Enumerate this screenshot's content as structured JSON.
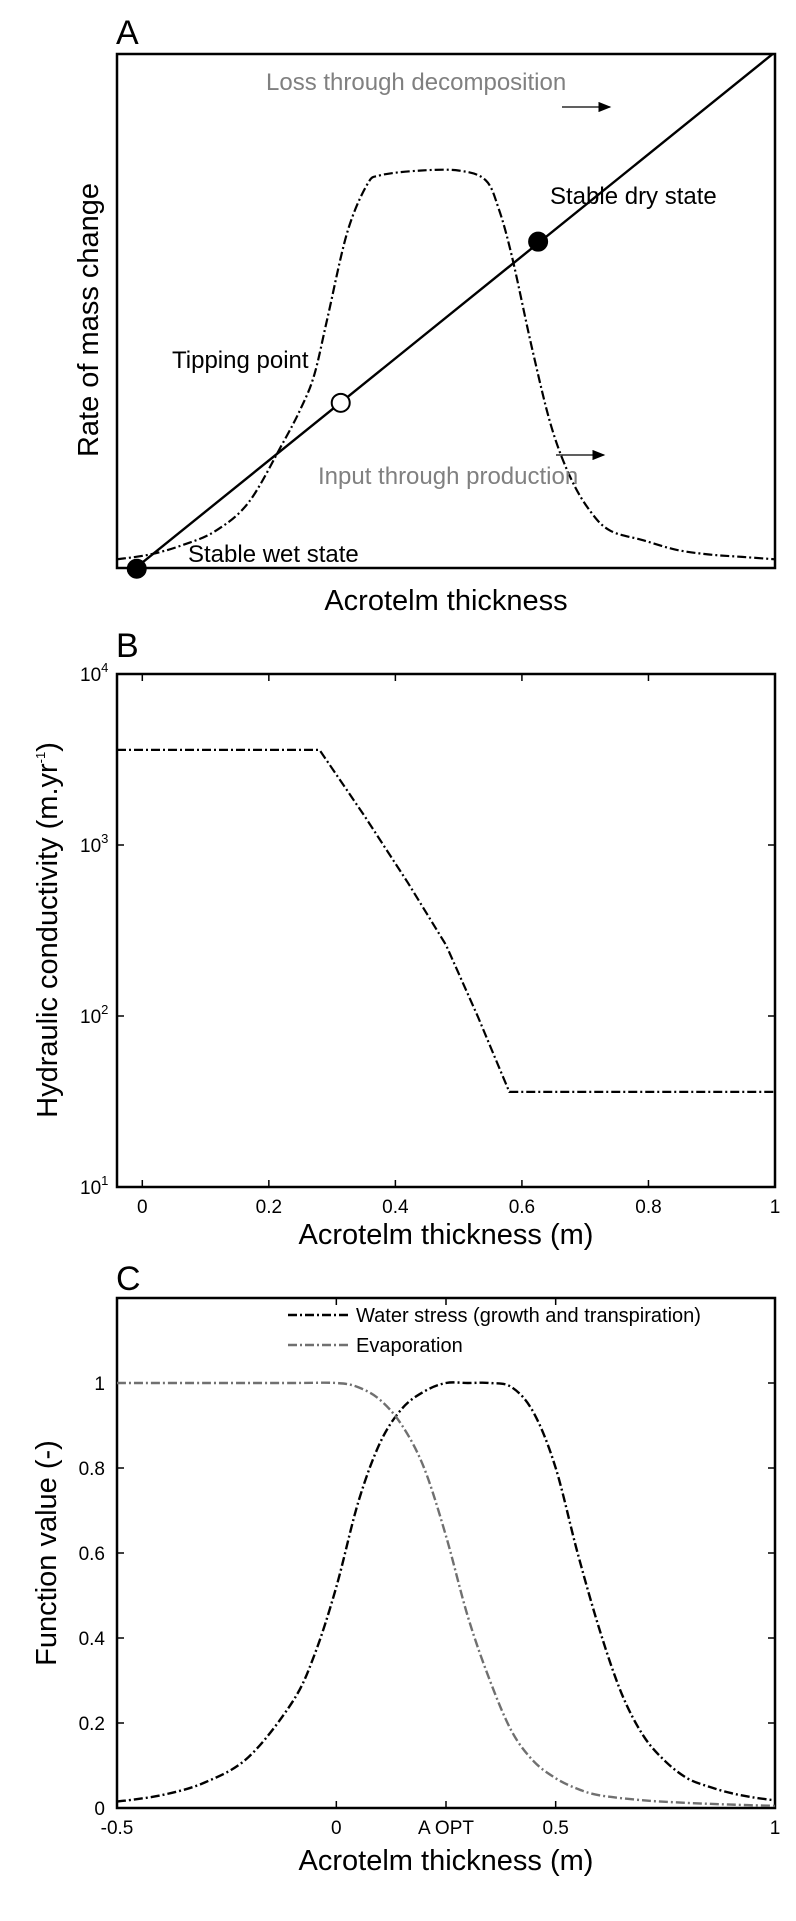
{
  "panels": {
    "a": {
      "letter": "A",
      "xlabel": "Acrotelm thickness",
      "ylabel": "Rate of mass change",
      "annotations": {
        "loss": "Loss through decomposition",
        "input": "Input through production",
        "tipping": "Tipping point",
        "dry": "Stable dry state",
        "wet": "Stable wet state"
      }
    },
    "b": {
      "letter": "B",
      "xlabel": "Acrotelm thickness (m)",
      "ylabel_main": "Hydraulic conductivity (m.yr",
      "ylabel_sup": "-1",
      "ylabel_close": ")",
      "x_ticks": [
        "0",
        "0.2",
        "0.4",
        "0.6",
        "0.8",
        "1"
      ],
      "y_ticks": [
        {
          "base": "10",
          "exp": "1"
        },
        {
          "base": "10",
          "exp": "2"
        },
        {
          "base": "10",
          "exp": "3"
        },
        {
          "base": "10",
          "exp": "4"
        }
      ]
    },
    "c": {
      "letter": "C",
      "xlabel": "Acrotelm thickness (m)",
      "ylabel": "Function value (-)",
      "x_ticks": [
        "-0.5",
        "0",
        "A OPT",
        "0.5",
        "1"
      ],
      "y_ticks": [
        "0",
        "0.2",
        "0.4",
        "0.6",
        "0.8",
        "1"
      ],
      "legend": [
        "Water stress (growth and transpiration)",
        "Evaporation"
      ]
    }
  },
  "colors": {
    "black_series": "#000000",
    "gray_series": "#707070",
    "annotation_gray": "#808080"
  },
  "chart_data": [
    {
      "type": "line",
      "panel": "A",
      "title": "",
      "xlabel": "Acrotelm thickness",
      "ylabel": "Rate of mass change",
      "note": "Conceptual diagram without numeric axes; values are relative (0-1).",
      "xlim": [
        0,
        1
      ],
      "ylim": [
        0,
        1
      ],
      "series": [
        {
          "name": "Loss through decomposition",
          "style": "solid",
          "x": [
            0,
            1
          ],
          "y": [
            -0.04,
            1.08
          ]
        },
        {
          "name": "Input through production",
          "style": "dashdot",
          "x": [
            0,
            0.05,
            0.1,
            0.15,
            0.2,
            0.25,
            0.28,
            0.3,
            0.32,
            0.35,
            0.38,
            0.4,
            0.46,
            0.52,
            0.56,
            0.58,
            0.6,
            0.63,
            0.66,
            0.69,
            0.72,
            0.75,
            0.8,
            0.85,
            0.9,
            0.95,
            1.0
          ],
          "y": [
            0.01,
            0.02,
            0.04,
            0.07,
            0.13,
            0.25,
            0.33,
            0.4,
            0.52,
            0.7,
            0.8,
            0.82,
            0.83,
            0.83,
            0.81,
            0.75,
            0.65,
            0.46,
            0.29,
            0.18,
            0.11,
            0.07,
            0.05,
            0.03,
            0.02,
            0.015,
            0.01
          ]
        }
      ],
      "points": [
        {
          "label": "Stable wet state",
          "x": 0.03,
          "y": -0.01,
          "filled": true
        },
        {
          "label": "Tipping point",
          "x": 0.34,
          "y": 0.34,
          "filled": false
        },
        {
          "label": "Stable dry state",
          "x": 0.64,
          "y": 0.68,
          "filled": true
        }
      ]
    },
    {
      "type": "line",
      "panel": "B",
      "title": "",
      "xlabel": "Acrotelm thickness (m)",
      "ylabel": "Hydraulic conductivity (m.yr-1)",
      "xlim": [
        -0.04,
        1
      ],
      "ylim": [
        10,
        10000
      ],
      "yscale": "log",
      "series": [
        {
          "style": "dashdot",
          "x": [
            -0.04,
            0.28,
            0.35,
            0.42,
            0.48,
            0.53,
            0.58,
            1.0
          ],
          "y": [
            3600,
            3600,
            1500,
            600,
            260,
            100,
            36,
            36
          ]
        }
      ]
    },
    {
      "type": "line",
      "panel": "C",
      "title": "",
      "xlabel": "Acrotelm thickness (m)",
      "ylabel": "Function value (-)",
      "xlim": [
        -0.5,
        1
      ],
      "ylim": [
        0,
        1.2
      ],
      "legend_position": "top-right",
      "series": [
        {
          "name": "Water stress (growth and transpiration)",
          "style": "dashdot",
          "x": [
            -0.5,
            -0.4,
            -0.3,
            -0.2,
            -0.1,
            -0.05,
            0,
            0.05,
            0.1,
            0.15,
            0.2,
            0.25,
            0.3,
            0.35,
            0.4,
            0.45,
            0.5,
            0.55,
            0.6,
            0.65,
            0.7,
            0.75,
            0.8,
            0.85,
            0.9,
            0.95,
            1.0
          ],
          "y": [
            0.015,
            0.03,
            0.06,
            0.12,
            0.25,
            0.36,
            0.52,
            0.72,
            0.86,
            0.94,
            0.98,
            1.0,
            1.0,
            1.0,
            0.99,
            0.93,
            0.8,
            0.6,
            0.42,
            0.27,
            0.17,
            0.11,
            0.07,
            0.05,
            0.035,
            0.025,
            0.018
          ]
        },
        {
          "name": "Evaporation",
          "style": "dashdot",
          "x": [
            -0.5,
            -0.3,
            -0.1,
            0,
            0.05,
            0.1,
            0.15,
            0.2,
            0.25,
            0.3,
            0.35,
            0.4,
            0.45,
            0.5,
            0.55,
            0.6,
            0.7,
            0.8,
            0.9,
            1.0
          ],
          "y": [
            1.0,
            1.0,
            1.0,
            1.0,
            0.99,
            0.96,
            0.9,
            0.8,
            0.64,
            0.45,
            0.3,
            0.18,
            0.11,
            0.07,
            0.045,
            0.03,
            0.018,
            0.012,
            0.008,
            0.005
          ]
        }
      ]
    }
  ]
}
